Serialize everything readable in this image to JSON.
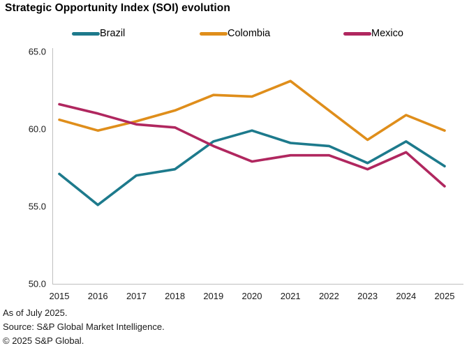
{
  "title": "Strategic Opportunity Index (SOI) evolution",
  "footer": {
    "as_of": "As of July 2025.",
    "source": "Source: S&P Global Market Intelligence.",
    "copyright": "© 2025 S&P Global."
  },
  "colors": {
    "axis_line": "#bfbfbf",
    "label_text": "#1a1a1a",
    "brazil": "#1d7a8c",
    "colombia": "#df8e1b",
    "mexico": "#b0275f"
  },
  "chart_data": {
    "type": "line",
    "title": "Strategic Opportunity Index (SOI) evolution",
    "categories": [
      2015,
      2016,
      2017,
      2018,
      2019,
      2020,
      2021,
      2022,
      2023,
      2024,
      2025
    ],
    "series": [
      {
        "name": "Brazil",
        "color": "#1d7a8c",
        "values": [
          57.1,
          55.1,
          57.0,
          57.4,
          59.2,
          59.9,
          59.1,
          58.9,
          57.8,
          59.2,
          57.6
        ]
      },
      {
        "name": "Colombia",
        "color": "#df8e1b",
        "values": [
          60.6,
          59.9,
          60.5,
          61.2,
          62.2,
          62.1,
          63.1,
          61.2,
          59.3,
          60.9,
          59.9
        ]
      },
      {
        "name": "Mexico",
        "color": "#b0275f",
        "values": [
          61.6,
          61.0,
          60.3,
          60.1,
          58.9,
          57.9,
          58.3,
          58.3,
          57.4,
          58.5,
          56.3
        ]
      }
    ],
    "xlabel": "",
    "ylabel": "",
    "ylim": [
      50.0,
      65.0
    ],
    "yticks": [
      65.0,
      60.0,
      55.0,
      50.0
    ],
    "ytick_format": "one_decimal",
    "grid": false,
    "legend_position": "top"
  }
}
